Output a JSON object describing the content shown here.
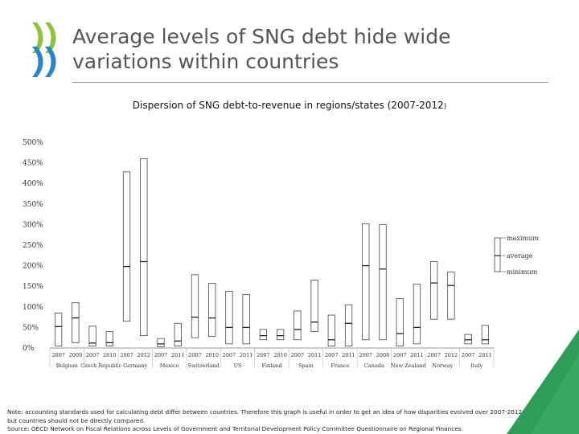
{
  "slide": {
    "title_line1": "Average levels of SNG debt hide wide",
    "title_line2": "variations within countries",
    "subtitle": "Dispersion of SNG debt-to-revenue in regions/states (2007-2012",
    "subtitle_end": ")",
    "note_line1": "Note: accounting standards used for calculating debt differ between countries. Therefore this graph is useful in order to get an idea of how disparities evolved over 2007-2012.",
    "note_line2": "but countries should not be directly compared.",
    "source": "Source: OECD Network on Fiscal Relations across Levels of Government and Territorial Development Policy Committee Questionnaire on Regional Finances."
  },
  "colors": {
    "logo_green": "#8fc23f",
    "logo_blue": "#2b84c6",
    "corner_green": "#2f9c5a",
    "box_stroke": "#444444",
    "axis": "#999999"
  },
  "chart_data": {
    "type": "box",
    "title": "Dispersion of SNG debt-to-revenue in regions/states (2007-2012)",
    "ylim": [
      0,
      500
    ],
    "y_ticks": [
      0,
      50,
      100,
      150,
      200,
      250,
      300,
      350,
      400,
      450,
      500
    ],
    "y_tick_labels": [
      "0%",
      "50%",
      "100%",
      "150%",
      "200%",
      "250%",
      "300%",
      "350%",
      "400%",
      "450%",
      "500%"
    ],
    "legend": {
      "maximum": "maximum",
      "average": "average",
      "minimum": "minimum"
    },
    "countries": [
      {
        "name": "Belgium",
        "years": [
          "2007",
          "2009"
        ]
      },
      {
        "name": "Czech Republic",
        "years": [
          "2007",
          "2010"
        ]
      },
      {
        "name": "Germany",
        "years": [
          "2007",
          "2012"
        ]
      },
      {
        "name": "Mexico",
        "years": [
          "2007",
          "2011"
        ]
      },
      {
        "name": "Switzerland",
        "years": [
          "2007",
          "2010"
        ]
      },
      {
        "name": "US",
        "years": [
          "2007",
          "2011"
        ]
      },
      {
        "name": "Finland",
        "years": [
          "2007",
          "2010"
        ]
      },
      {
        "name": "Spain",
        "years": [
          "2007",
          "2011"
        ]
      },
      {
        "name": "France",
        "years": [
          "2007",
          "2011"
        ]
      },
      {
        "name": "Canada",
        "years": [
          "2007",
          "2008"
        ]
      },
      {
        "name": "New Zealand",
        "years": [
          "2007",
          "2011"
        ]
      },
      {
        "name": "Norway",
        "years": [
          "2007",
          "2012"
        ]
      },
      {
        "name": "Italy",
        "years": [
          "2007",
          "2011"
        ]
      }
    ],
    "series": [
      {
        "country": "Belgium",
        "year": "2007",
        "min": 5,
        "avg": 52,
        "max": 85
      },
      {
        "country": "Belgium",
        "year": "2009",
        "min": 13,
        "avg": 73,
        "max": 110
      },
      {
        "country": "Czech Republic",
        "year": "2007",
        "min": 5,
        "avg": 12,
        "max": 53
      },
      {
        "country": "Czech Republic",
        "year": "2010",
        "min": 5,
        "avg": 13,
        "max": 40
      },
      {
        "country": "Germany",
        "year": "2007",
        "min": 65,
        "avg": 198,
        "max": 428
      },
      {
        "country": "Germany",
        "year": "2012",
        "min": 30,
        "avg": 210,
        "max": 460
      },
      {
        "country": "Mexico",
        "year": "2007",
        "min": 3,
        "avg": 10,
        "max": 23
      },
      {
        "country": "Mexico",
        "year": "2011",
        "min": 5,
        "avg": 17,
        "max": 60
      },
      {
        "country": "Switzerland",
        "year": "2007",
        "min": 25,
        "avg": 75,
        "max": 178
      },
      {
        "country": "Switzerland",
        "year": "2010",
        "min": 28,
        "avg": 73,
        "max": 157
      },
      {
        "country": "US",
        "year": "2007",
        "min": 10,
        "avg": 50,
        "max": 138
      },
      {
        "country": "US",
        "year": "2011",
        "min": 10,
        "avg": 50,
        "max": 130
      },
      {
        "country": "Finland",
        "year": "2007",
        "min": 20,
        "avg": 30,
        "max": 45
      },
      {
        "country": "Finland",
        "year": "2010",
        "min": 20,
        "avg": 30,
        "max": 45
      },
      {
        "country": "Spain",
        "year": "2007",
        "min": 20,
        "avg": 45,
        "max": 90
      },
      {
        "country": "Spain",
        "year": "2011",
        "min": 40,
        "avg": 63,
        "max": 165
      },
      {
        "country": "France",
        "year": "2007",
        "min": 5,
        "avg": 20,
        "max": 80
      },
      {
        "country": "France",
        "year": "2011",
        "min": 5,
        "avg": 60,
        "max": 105
      },
      {
        "country": "Canada",
        "year": "2007",
        "min": 20,
        "avg": 200,
        "max": 302
      },
      {
        "country": "Canada",
        "year": "2008",
        "min": 20,
        "avg": 192,
        "max": 300
      },
      {
        "country": "New Zealand",
        "year": "2007",
        "min": 5,
        "avg": 35,
        "max": 120
      },
      {
        "country": "New Zealand",
        "year": "2011",
        "min": 10,
        "avg": 50,
        "max": 155
      },
      {
        "country": "Norway",
        "year": "2007",
        "min": 70,
        "avg": 158,
        "max": 210
      },
      {
        "country": "Norway",
        "year": "2012",
        "min": 70,
        "avg": 152,
        "max": 185
      },
      {
        "country": "Italy",
        "year": "2007",
        "min": 10,
        "avg": 20,
        "max": 33
      },
      {
        "country": "Italy",
        "year": "2011",
        "min": 10,
        "avg": 20,
        "max": 55
      }
    ]
  }
}
